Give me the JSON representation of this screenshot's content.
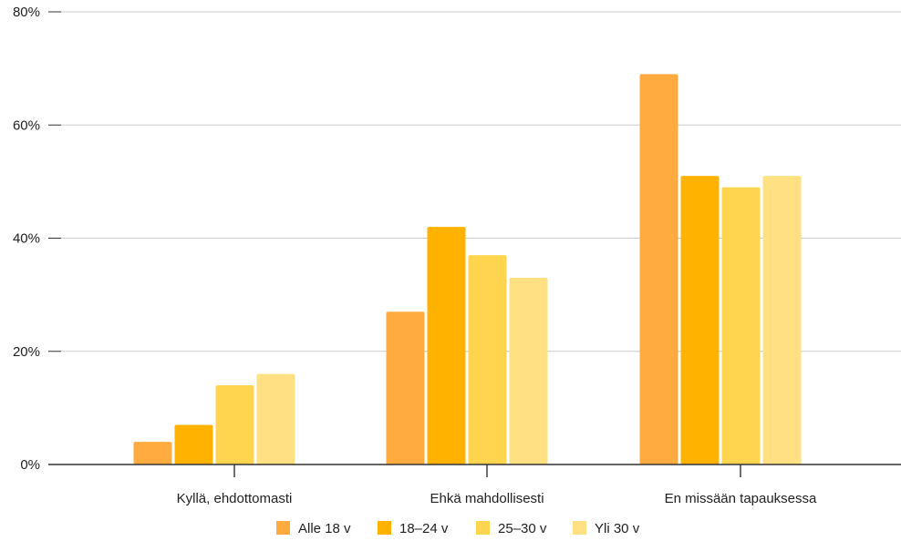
{
  "chart_data": {
    "type": "bar",
    "title": "",
    "xlabel": "",
    "ylabel": "",
    "categories": [
      "Kyllä, ehdottomasti",
      "Ehkä mahdollisesti",
      "En missään tapauksessa"
    ],
    "series": [
      {
        "name": "Alle 18 v",
        "color": "#FFAB40",
        "values": [
          4,
          27,
          69
        ]
      },
      {
        "name": "18–24 v",
        "color": "#FFB300",
        "values": [
          7,
          42,
          51
        ]
      },
      {
        "name": "25–30 v",
        "color": "#FFD54F",
        "values": [
          14,
          37,
          49
        ]
      },
      {
        "name": "Yli 30 v",
        "color": "#FFE082",
        "values": [
          16,
          33,
          51
        ]
      }
    ],
    "ylim": [
      0,
      80
    ],
    "yticks": [
      "0%",
      "20%",
      "40%",
      "60%",
      "80%"
    ],
    "ytick_values": [
      0,
      20,
      40,
      60,
      80
    ],
    "grid": true,
    "legend_position": "bottom"
  },
  "colors": {
    "gridline": "#cccccc",
    "axis": "#333333",
    "text": "#222222"
  }
}
